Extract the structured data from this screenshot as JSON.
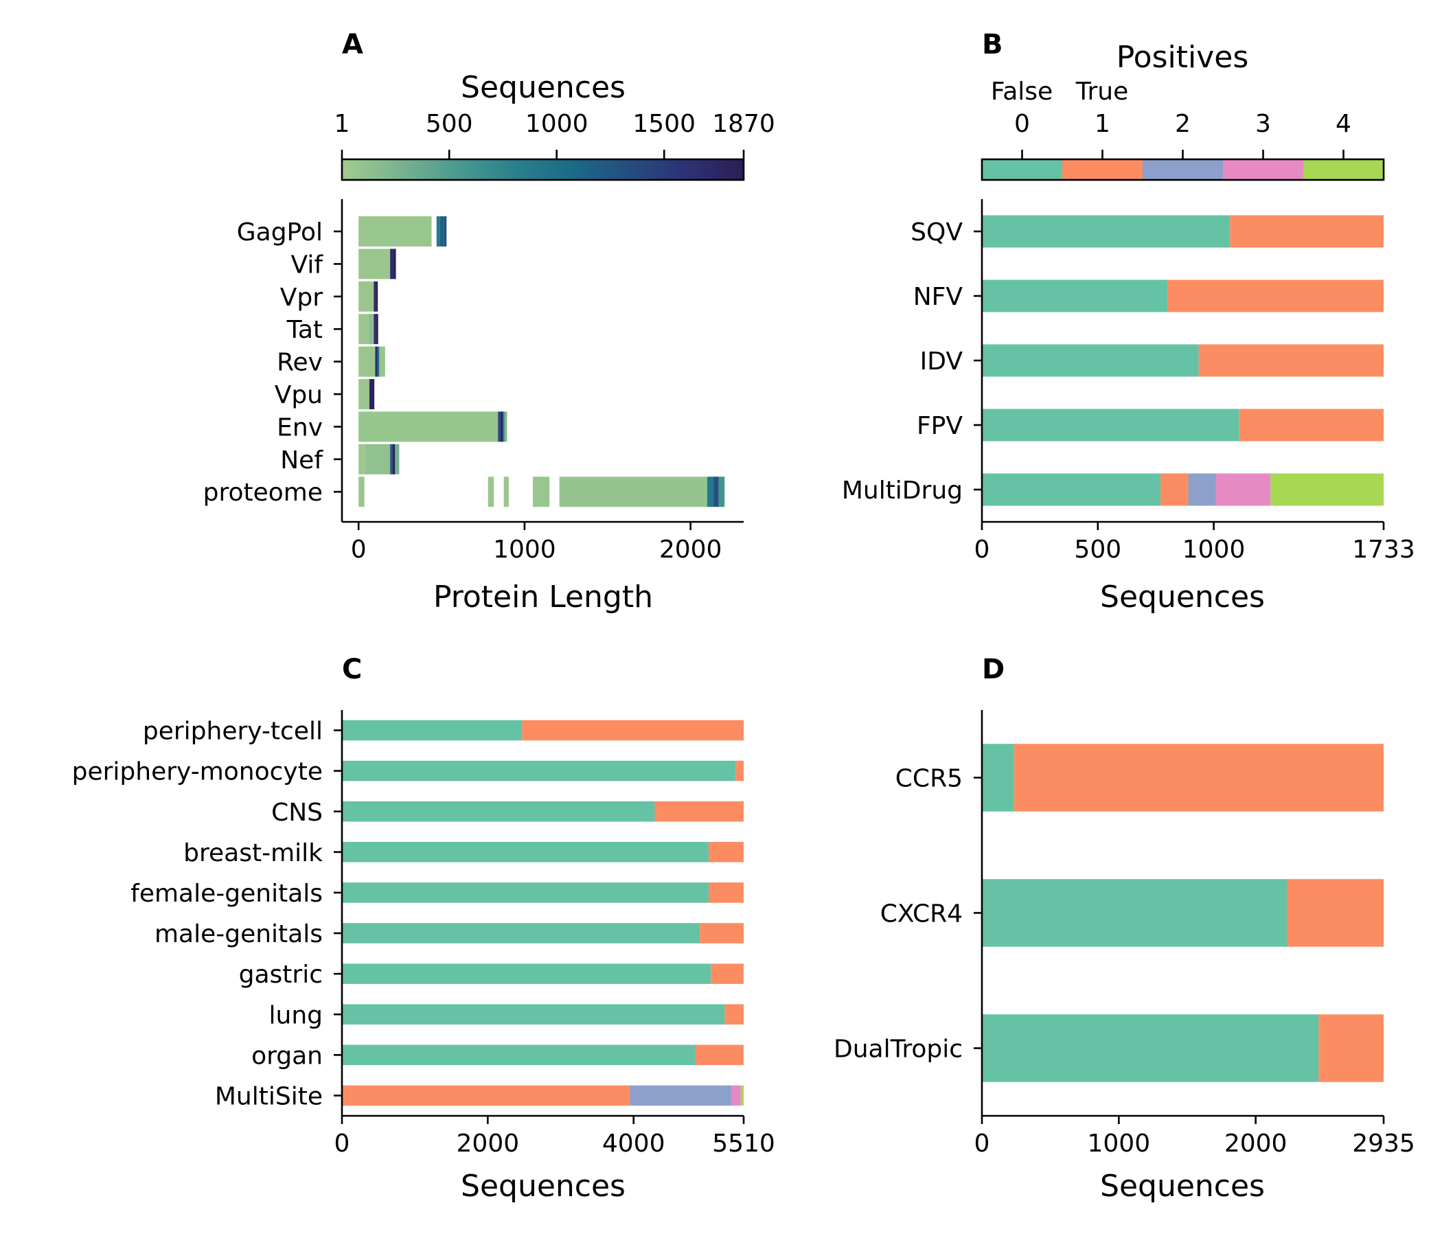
{
  "chart_data": [
    {
      "panel": "A",
      "type": "heatmap",
      "title": "",
      "xlabel": "Protein Length",
      "ylabel": "",
      "xlim": [
        -100,
        2320
      ],
      "xticks": [
        "0",
        "1000",
        "2000"
      ],
      "categories": [
        "GagPol",
        "Vif",
        "Vpr",
        "Tat",
        "Rev",
        "Vpu",
        "Env",
        "Nef",
        "proteome"
      ],
      "colorbar": {
        "label": "Sequences",
        "range": [
          1,
          1870
        ],
        "ticks": [
          "1",
          "500",
          "1000",
          "1500",
          "1870"
        ],
        "colormap": "crest",
        "stops": [
          "#a3cc8d",
          "#79b390",
          "#4c9a8f",
          "#2a818c",
          "#1b6a88",
          "#254d80",
          "#2c3275",
          "#2c1e54"
        ]
      },
      "rows": [
        {
          "category": "GagPol",
          "segments": [
            {
              "start": 0,
              "end": 440,
              "count": 70
            },
            {
              "start": 470,
              "end": 490,
              "count": 900
            },
            {
              "start": 490,
              "end": 515,
              "count": 1150
            },
            {
              "start": 515,
              "end": 530,
              "count": 1300
            }
          ]
        },
        {
          "category": "Vif",
          "segments": [
            {
              "start": 0,
              "end": 190,
              "count": 60
            },
            {
              "start": 190,
              "end": 210,
              "count": 1700
            },
            {
              "start": 210,
              "end": 225,
              "count": 1850
            }
          ]
        },
        {
          "category": "Vpr",
          "segments": [
            {
              "start": 0,
              "end": 92,
              "count": 60
            },
            {
              "start": 92,
              "end": 104,
              "count": 1800
            },
            {
              "start": 104,
              "end": 116,
              "count": 1850
            }
          ]
        },
        {
          "category": "Tat",
          "segments": [
            {
              "start": 0,
              "end": 60,
              "count": 50
            },
            {
              "start": 60,
              "end": 92,
              "count": 150
            },
            {
              "start": 92,
              "end": 106,
              "count": 1750
            },
            {
              "start": 106,
              "end": 118,
              "count": 1850
            }
          ]
        },
        {
          "category": "Rev",
          "segments": [
            {
              "start": 0,
              "end": 100,
              "count": 60
            },
            {
              "start": 100,
              "end": 113,
              "count": 1700
            },
            {
              "start": 113,
              "end": 125,
              "count": 1000
            },
            {
              "start": 125,
              "end": 160,
              "count": 80
            }
          ]
        },
        {
          "category": "Vpu",
          "segments": [
            {
              "start": 0,
              "end": 65,
              "count": 60
            },
            {
              "start": 65,
              "end": 80,
              "count": 1750
            },
            {
              "start": 80,
              "end": 95,
              "count": 1850
            }
          ]
        },
        {
          "category": "Env",
          "segments": [
            {
              "start": 0,
              "end": 840,
              "count": 80
            },
            {
              "start": 840,
              "end": 855,
              "count": 1400
            },
            {
              "start": 855,
              "end": 870,
              "count": 1750
            },
            {
              "start": 870,
              "end": 880,
              "count": 700
            },
            {
              "start": 880,
              "end": 895,
              "count": 200
            }
          ]
        },
        {
          "category": "Nef",
          "segments": [
            {
              "start": 0,
              "end": 40,
              "count": 40
            },
            {
              "start": 40,
              "end": 190,
              "count": 120
            },
            {
              "start": 190,
              "end": 203,
              "count": 1200
            },
            {
              "start": 203,
              "end": 220,
              "count": 1800
            },
            {
              "start": 220,
              "end": 245,
              "count": 300
            }
          ]
        },
        {
          "category": "proteome",
          "segments": [
            {
              "start": 0,
              "end": 35,
              "count": 60
            },
            {
              "start": 780,
              "end": 815,
              "count": 60
            },
            {
              "start": 875,
              "end": 905,
              "count": 60
            },
            {
              "start": 1050,
              "end": 1150,
              "count": 70
            },
            {
              "start": 1210,
              "end": 2100,
              "count": 90
            },
            {
              "start": 2100,
              "end": 2140,
              "count": 900
            },
            {
              "start": 2140,
              "end": 2170,
              "count": 1300
            },
            {
              "start": 2170,
              "end": 2205,
              "count": 600
            }
          ]
        }
      ]
    },
    {
      "panel": "B",
      "type": "bar",
      "stacked": true,
      "orientation": "horizontal",
      "xlabel": "Sequences",
      "xlim": [
        0,
        1733
      ],
      "xticks": [
        "0",
        "500",
        "1000",
        "1733"
      ],
      "categories": [
        "SQV",
        "NFV",
        "IDV",
        "FPV",
        "MultiDrug"
      ],
      "legend": {
        "title": "Positives",
        "false_label": "False",
        "true_label": "True",
        "ticks": [
          "0",
          "1",
          "2",
          "3",
          "4"
        ]
      },
      "series": [
        {
          "name": "0",
          "color": "#66c2a5",
          "values": [
            1070,
            800,
            935,
            1110,
            770
          ]
        },
        {
          "name": "1",
          "color": "#fc8d62",
          "values": [
            663,
            933,
            798,
            623,
            120
          ]
        },
        {
          "name": "2",
          "color": "#8da0cb",
          "values": [
            0,
            0,
            0,
            0,
            120
          ]
        },
        {
          "name": "3",
          "color": "#e78ac3",
          "values": [
            0,
            0,
            0,
            0,
            235
          ]
        },
        {
          "name": "4",
          "color": "#a6d854",
          "values": [
            0,
            0,
            0,
            0,
            488
          ]
        }
      ]
    },
    {
      "panel": "C",
      "type": "bar",
      "stacked": true,
      "orientation": "horizontal",
      "xlabel": "Sequences",
      "xlim": [
        0,
        5510
      ],
      "xticks": [
        "0",
        "2000",
        "4000",
        "5510"
      ],
      "categories": [
        "periphery-tcell",
        "periphery-monocyte",
        "CNS",
        "breast-milk",
        "female-genitals",
        "male-genitals",
        "gastric",
        "lung",
        "organ",
        "MultiSite"
      ],
      "series": [
        {
          "name": "0",
          "color": "#66c2a5",
          "values": [
            2470,
            5400,
            4290,
            5030,
            5030,
            4910,
            5060,
            5250,
            4850,
            0
          ]
        },
        {
          "name": "1",
          "color": "#fc8d62",
          "values": [
            3040,
            110,
            1220,
            480,
            480,
            600,
            450,
            260,
            660,
            3950
          ]
        },
        {
          "name": "2",
          "color": "#8da0cb",
          "values": [
            0,
            0,
            0,
            0,
            0,
            0,
            0,
            0,
            0,
            1390
          ]
        },
        {
          "name": "3",
          "color": "#e78ac3",
          "values": [
            0,
            0,
            0,
            0,
            0,
            0,
            0,
            0,
            0,
            130
          ]
        },
        {
          "name": "4",
          "color": "#a6d854",
          "values": [
            0,
            0,
            0,
            0,
            0,
            0,
            0,
            0,
            0,
            40
          ]
        }
      ]
    },
    {
      "panel": "D",
      "type": "bar",
      "stacked": true,
      "orientation": "horizontal",
      "xlabel": "Sequences",
      "xlim": [
        0,
        2935
      ],
      "xticks": [
        "0",
        "1000",
        "2000",
        "2935"
      ],
      "categories": [
        "CCR5",
        "CXCR4",
        "DualTropic"
      ],
      "series": [
        {
          "name": "0",
          "color": "#66c2a5",
          "values": [
            235,
            2230,
            2460
          ]
        },
        {
          "name": "1",
          "color": "#fc8d62",
          "values": [
            2700,
            705,
            475
          ]
        }
      ]
    }
  ]
}
